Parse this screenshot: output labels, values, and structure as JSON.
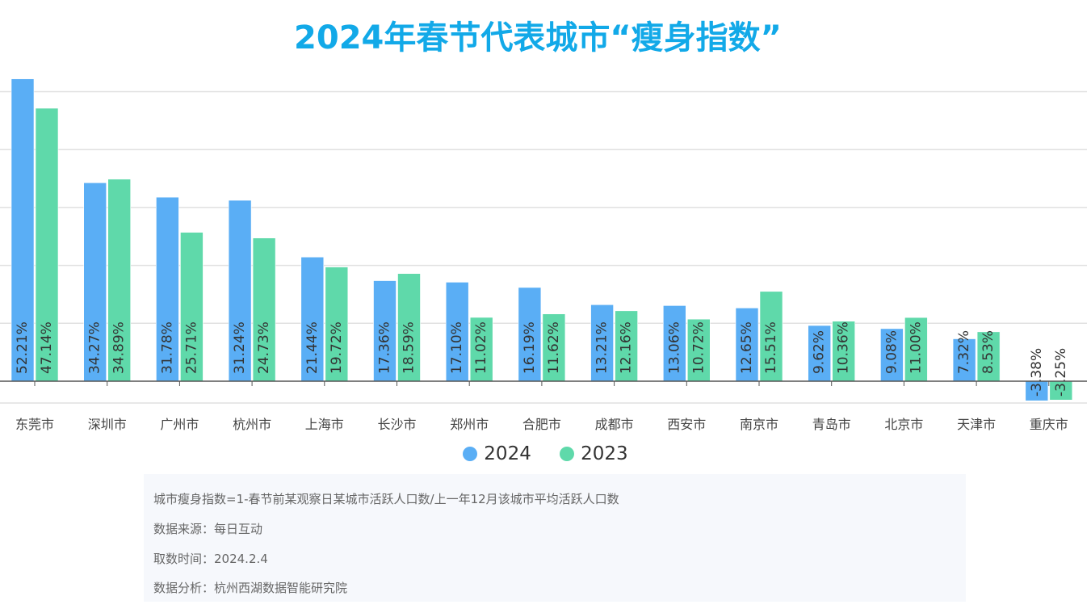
{
  "title": "2024年春节代表城市“瘦身指数”",
  "colors": {
    "title": "#12a9e8",
    "2024": "#5aaef5",
    "2023": "#5fd9aa"
  },
  "chart_data": {
    "type": "bar",
    "title": "2024年春节代表城市“瘦身指数”",
    "categories": [
      "东莞市",
      "深圳市",
      "广州市",
      "杭州市",
      "上海市",
      "长沙市",
      "郑州市",
      "合肥市",
      "成都市",
      "西安市",
      "南京市",
      "青岛市",
      "北京市",
      "天津市",
      "重庆市"
    ],
    "series": [
      {
        "name": "2024",
        "values": [
          52.21,
          34.27,
          31.78,
          31.24,
          21.44,
          17.36,
          17.1,
          16.19,
          13.21,
          13.06,
          12.65,
          9.62,
          9.08,
          7.32,
          -3.38
        ]
      },
      {
        "name": "2023",
        "values": [
          47.14,
          34.89,
          25.71,
          24.73,
          19.72,
          18.59,
          11.02,
          11.62,
          12.16,
          10.72,
          15.51,
          10.36,
          11.0,
          8.53,
          -3.25
        ]
      }
    ],
    "value_unit": "%",
    "gridlines": [
      50,
      40,
      30,
      20,
      10
    ],
    "grid": true,
    "legend": "bottom-center",
    "xlabel": "",
    "ylabel": ""
  },
  "notes": [
    "城市瘦身指数=1-春节前某观察日某城市活跃人口数/上一年12月该城市平均活跃人口数",
    "数据来源：每日互动",
    "取数时间：2024.2.4",
    "数据分析：杭州西湖数据智能研究院"
  ]
}
